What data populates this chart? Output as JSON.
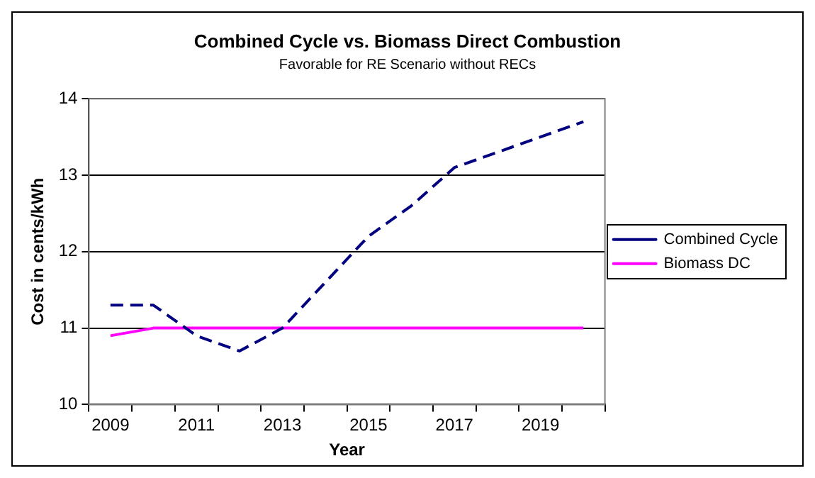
{
  "chart_data": {
    "type": "line",
    "title": "Combined Cycle vs. Biomass Direct Combustion",
    "subtitle": "Favorable for RE Scenario without RECs",
    "xlabel": "Year",
    "ylabel": "Cost in cents/kWh",
    "categories": [
      "2009",
      null,
      "2011",
      null,
      "2013",
      null,
      "2015",
      null,
      "2017",
      null,
      "2019",
      null
    ],
    "series": [
      {
        "name": "Combined Cycle",
        "color": "#000080",
        "line_style": "dashed",
        "values": [
          11.3,
          11.3,
          10.9,
          10.7,
          11.0,
          11.6,
          12.2,
          12.6,
          13.1,
          13.3,
          13.5,
          13.7
        ]
      },
      {
        "name": "Biomass DC",
        "color": "#ff00ff",
        "line_style": "solid",
        "values": [
          10.9,
          11.0,
          11.0,
          11.0,
          11.0,
          11.0,
          11.0,
          11.0,
          11.0,
          11.0,
          11.0,
          11.0
        ]
      }
    ],
    "ylim": [
      10,
      14
    ],
    "yticks": [
      10,
      11,
      12,
      13,
      14
    ],
    "grid": "y",
    "legend": "right",
    "marker": "none"
  }
}
